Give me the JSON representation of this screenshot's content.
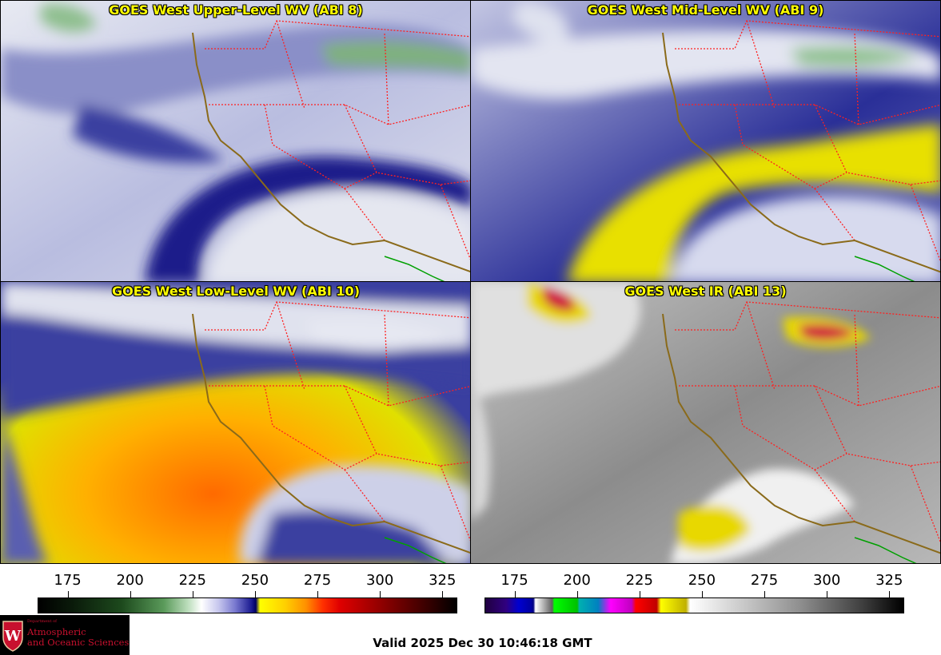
{
  "panels": [
    {
      "id": "upper",
      "title": "GOES West Upper-Level WV (ABI 8)"
    },
    {
      "id": "mid",
      "title": "GOES West Mid-Level WV (ABI 9)"
    },
    {
      "id": "low",
      "title": "GOES West Low-Level WV (ABI 10)"
    },
    {
      "id": "ir",
      "title": "GOES West IR (ABI 13)"
    }
  ],
  "colorbars": {
    "wv": {
      "ticks": [
        "175",
        "200",
        "225",
        "250",
        "275",
        "300",
        "325"
      ],
      "range": [
        163,
        331
      ]
    },
    "ir": {
      "ticks": [
        "175",
        "200",
        "225",
        "250",
        "275",
        "300",
        "325"
      ],
      "range": [
        163,
        331
      ]
    }
  },
  "logo": {
    "dept_prefix": "Department of",
    "line1": "Atmospheric",
    "line2": "and Oceanic Sciences",
    "shield_letter": "W"
  },
  "footer": {
    "valid_time": "Valid 2025 Dec 30 10:46:18 GMT"
  },
  "colors": {
    "title_text": "#ffff00",
    "state_borders": "#ff2020",
    "coastline": "#8a6a1a",
    "mexico_border": "#00a000",
    "logo_red": "#c8102e"
  }
}
